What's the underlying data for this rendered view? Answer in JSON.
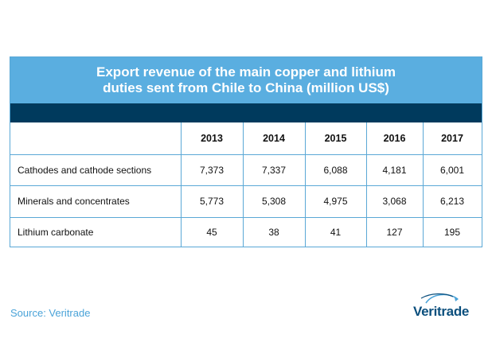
{
  "chart_data": {
    "type": "table",
    "title_lines": [
      "Export revenue of the main copper and lithium",
      "duties sent from Chile to China (million US$)"
    ],
    "columns": [
      "2013",
      "2014",
      "2015",
      "2016",
      "2017"
    ],
    "rows": [
      {
        "label": "Cathodes and cathode sections",
        "cells": [
          "7,373",
          "7,337",
          "6,088",
          "4,181",
          "6,001"
        ],
        "values": [
          7373,
          7337,
          6088,
          4181,
          6001
        ]
      },
      {
        "label": "Minerals and concentrates",
        "cells": [
          "5,773",
          "5,308",
          "4,975",
          "3,068",
          "6,213"
        ],
        "values": [
          5773,
          5308,
          4975,
          3068,
          6213
        ]
      },
      {
        "label": "Lithium carbonate",
        "cells": [
          "45",
          "38",
          "41",
          "127",
          "195"
        ],
        "values": [
          45,
          38,
          41,
          127,
          195
        ]
      }
    ]
  },
  "footer": {
    "source": "Source: Veritrade",
    "logo_text": "Veritrade"
  },
  "colors": {
    "title_bar": "#5aaee0",
    "header_strip": "#003a5d",
    "border": "#5aa8d6",
    "source_text": "#4aa3d8",
    "logo_text": "#0b4f7d"
  },
  "icons": {
    "logo": "veritrade-swoosh-icon"
  }
}
